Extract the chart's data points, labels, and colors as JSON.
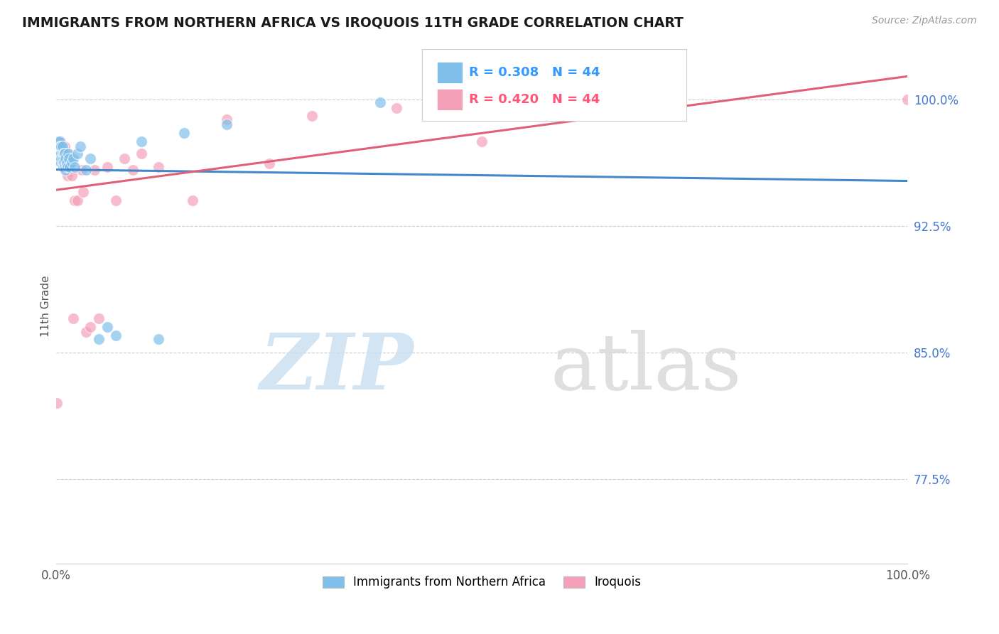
{
  "title": "IMMIGRANTS FROM NORTHERN AFRICA VS IROQUOIS 11TH GRADE CORRELATION CHART",
  "source": "Source: ZipAtlas.com",
  "ylabel": "11th Grade",
  "xlim": [
    0.0,
    1.0
  ],
  "ylim": [
    0.725,
    1.03
  ],
  "yticks": [
    0.775,
    0.85,
    0.925,
    1.0
  ],
  "ytick_labels": [
    "77.5%",
    "85.0%",
    "92.5%",
    "100.0%"
  ],
  "R_blue": 0.308,
  "R_pink": 0.42,
  "N": 44,
  "blue_color": "#7fbfea",
  "pink_color": "#f4a0b8",
  "blue_line_color": "#4488cc",
  "pink_line_color": "#e0607a",
  "legend_R_blue_color": "#3399ff",
  "legend_R_pink_color": "#ff5577",
  "blue_scatter_x": [
    0.001,
    0.002,
    0.002,
    0.003,
    0.003,
    0.004,
    0.004,
    0.005,
    0.005,
    0.005,
    0.006,
    0.006,
    0.006,
    0.007,
    0.007,
    0.007,
    0.008,
    0.008,
    0.009,
    0.009,
    0.01,
    0.01,
    0.011,
    0.011,
    0.012,
    0.013,
    0.014,
    0.015,
    0.016,
    0.018,
    0.02,
    0.022,
    0.025,
    0.028,
    0.035,
    0.04,
    0.05,
    0.06,
    0.07,
    0.1,
    0.12,
    0.15,
    0.2,
    0.38
  ],
  "blue_scatter_y": [
    0.97,
    0.975,
    0.968,
    0.972,
    0.965,
    0.975,
    0.97,
    0.968,
    0.963,
    0.972,
    0.968,
    0.972,
    0.965,
    0.968,
    0.963,
    0.972,
    0.965,
    0.96,
    0.968,
    0.963,
    0.968,
    0.96,
    0.965,
    0.958,
    0.962,
    0.96,
    0.968,
    0.965,
    0.96,
    0.963,
    0.965,
    0.96,
    0.968,
    0.972,
    0.958,
    0.965,
    0.858,
    0.865,
    0.86,
    0.975,
    0.858,
    0.98,
    0.985,
    0.998
  ],
  "pink_scatter_x": [
    0.001,
    0.002,
    0.003,
    0.003,
    0.004,
    0.005,
    0.005,
    0.006,
    0.006,
    0.007,
    0.007,
    0.008,
    0.009,
    0.01,
    0.01,
    0.011,
    0.012,
    0.013,
    0.015,
    0.016,
    0.018,
    0.02,
    0.022,
    0.025,
    0.03,
    0.032,
    0.035,
    0.04,
    0.045,
    0.05,
    0.06,
    0.07,
    0.08,
    0.09,
    0.1,
    0.12,
    0.16,
    0.2,
    0.25,
    0.3,
    0.4,
    0.5,
    0.65,
    1.0
  ],
  "pink_scatter_y": [
    0.82,
    0.968,
    0.965,
    0.972,
    0.965,
    0.968,
    0.975,
    0.963,
    0.972,
    0.965,
    0.972,
    0.968,
    0.96,
    0.963,
    0.972,
    0.96,
    0.968,
    0.955,
    0.962,
    0.965,
    0.955,
    0.87,
    0.94,
    0.94,
    0.958,
    0.945,
    0.862,
    0.865,
    0.958,
    0.87,
    0.96,
    0.94,
    0.965,
    0.958,
    0.968,
    0.96,
    0.94,
    0.988,
    0.962,
    0.99,
    0.995,
    0.975,
    0.995,
    1.0
  ],
  "background_color": "#ffffff"
}
